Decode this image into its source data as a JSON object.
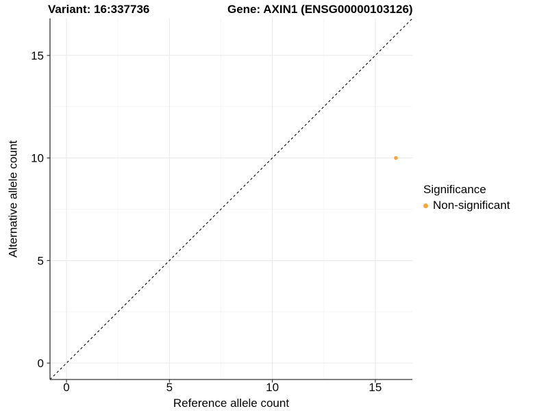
{
  "style": {
    "background": "#ffffff",
    "axis_line_color": "#333333",
    "tick_color": "#333333",
    "grid_major_color": "#e8e8e8",
    "grid_minor_color": "#f3f3f3",
    "text_color": "#000000",
    "point_color": "#F8A53E",
    "reference_line_color": "#000000"
  },
  "chart_data": {
    "type": "scatter",
    "titles": {
      "left": "Variant: 16:337736",
      "right": "Gene: AXIN1 (ENSG00000103126)"
    },
    "xlabel": "Reference allele count",
    "ylabel": "Alternative allele count",
    "xlim": [
      -0.8,
      16.8
    ],
    "ylim": [
      -0.8,
      16.8
    ],
    "x_ticks": [
      0,
      5,
      10,
      15
    ],
    "y_ticks": [
      0,
      5,
      10,
      15
    ],
    "x_minor_ticks": [
      2.5,
      7.5,
      12.5
    ],
    "y_minor_ticks": [
      2.5,
      7.5,
      12.5
    ],
    "grid": "major+minor",
    "reference_line": {
      "kind": "identity y=x",
      "style": "dashed",
      "color": "#000000"
    },
    "series": [
      {
        "name": "Non-significant",
        "color": "#F8A53E",
        "marker": "circle",
        "points": [
          {
            "x": 16,
            "y": 10
          }
        ]
      }
    ],
    "legend": {
      "title": "Significance",
      "position": "right",
      "items": [
        {
          "label": "Non-significant",
          "color": "#F8A53E"
        }
      ]
    }
  }
}
